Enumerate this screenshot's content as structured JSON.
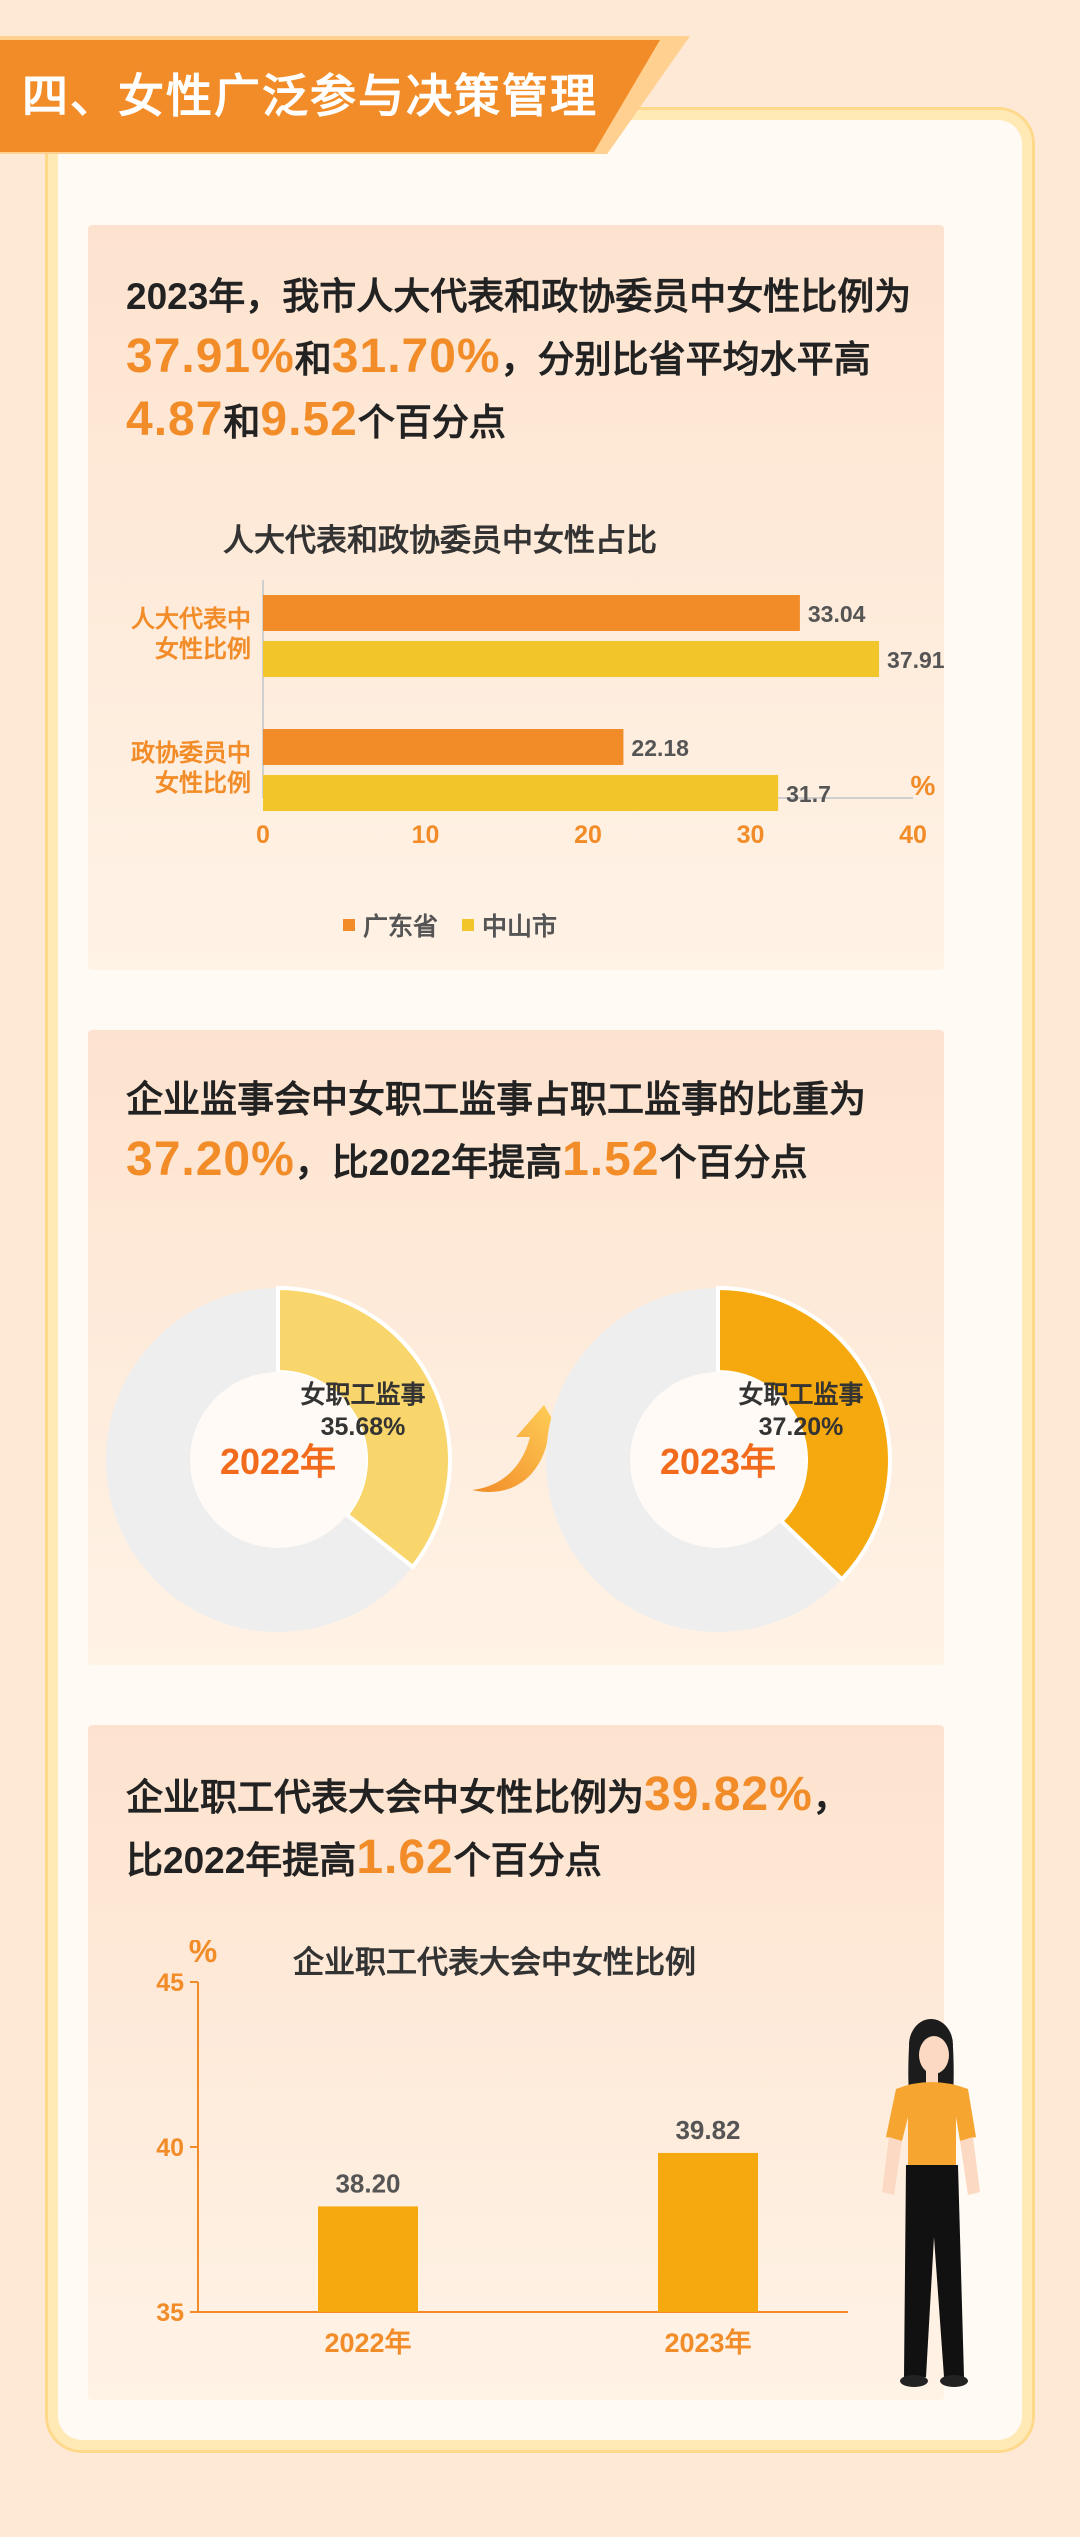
{
  "section": {
    "title": "四、女性广泛参与决策管理"
  },
  "p1": {
    "text_a": "2023年，我市人大代表和政协委员中女性比例为",
    "v1": "37.91%",
    "text_b": "和",
    "v2": "31.70%",
    "text_c": "，分别比省平均水平高",
    "v3": "4.87",
    "text_d": "和",
    "v4": "9.52",
    "text_e": "个百分点"
  },
  "p2": {
    "text_a": "企业监事会中女职工监事占职工监事的比重为",
    "v1": "37.20%",
    "text_b": "，比2022年提高",
    "v2": "1.52",
    "text_c": "个百分点"
  },
  "p3": {
    "text_a": "企业职工代表大会中女性比例为",
    "v1": "39.82%",
    "text_b": "，",
    "text_c": "比2022年提高",
    "v2": "1.62",
    "text_d": "个百分点"
  },
  "colors": {
    "orange": "#f28c28",
    "yellow": "#f2c62a",
    "donut_2022": "#f9d66b",
    "donut_2023": "#f5a90e",
    "bar": "#f5a90e",
    "track": "#eeeeee"
  },
  "chart_data": [
    {
      "type": "bar",
      "orientation": "horizontal",
      "title": "人大代表和政协委员中女性占比",
      "categories": [
        "人大代表中女性比例",
        "政协委员中女性比例"
      ],
      "category_lines": [
        [
          "人大代表中",
          "女性比例"
        ],
        [
          "政协委员中",
          "女性比例"
        ]
      ],
      "series": [
        {
          "name": "广东省",
          "values": [
            33.04,
            22.18
          ],
          "color": "#f28c28"
        },
        {
          "name": "中山市",
          "values": [
            37.91,
            31.7
          ],
          "color": "#f2c62a"
        }
      ],
      "value_labels": [
        [
          "33.04",
          "22.18"
        ],
        [
          "37.91",
          "31.7"
        ]
      ],
      "unit": "%",
      "xlim": [
        0,
        40
      ],
      "xticks": [
        "0",
        "10",
        "20",
        "30",
        "40"
      ],
      "legend": "bottom",
      "grid": false
    },
    {
      "type": "pie",
      "variant": "donut",
      "center_label": "2022年",
      "segment_label": "女职工监事",
      "value_label": "35.68%",
      "value": 35.68
    },
    {
      "type": "pie",
      "variant": "donut",
      "center_label": "2023年",
      "segment_label": "女职工监事",
      "value_label": "37.20%",
      "value": 37.2
    },
    {
      "type": "bar",
      "title": "企业职工代表大会中女性比例",
      "categories": [
        "2022年",
        "2023年"
      ],
      "values": [
        38.2,
        39.82
      ],
      "value_labels": [
        "38.20",
        "39.82"
      ],
      "unit": "%",
      "ylim": [
        35,
        45
      ],
      "yticks": [
        "35",
        "40",
        "45"
      ],
      "grid": false
    }
  ]
}
